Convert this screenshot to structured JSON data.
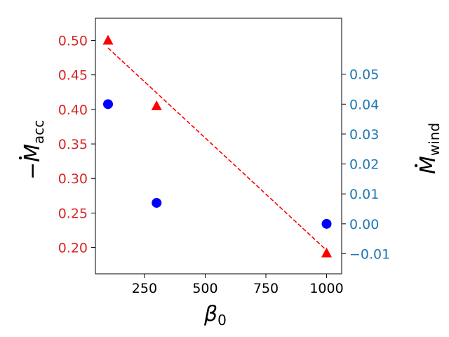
{
  "chart_data": {
    "type": "scatter",
    "x": [
      100,
      300,
      1000
    ],
    "xticks": [
      250,
      500,
      750,
      1000
    ],
    "xlim": [
      48,
      1062
    ],
    "xlabel": {
      "main": "β",
      "sub": "0"
    },
    "left_axis": {
      "label": {
        "sign": "−",
        "main": "M",
        "sub": "acc"
      },
      "ylim": [
        0.162,
        0.532
      ],
      "ticks": [
        "0.20",
        "0.25",
        "0.30",
        "0.35",
        "0.40",
        "0.45",
        "0.50"
      ],
      "tick_values": [
        0.2,
        0.25,
        0.3,
        0.35,
        0.4,
        0.45,
        0.5
      ],
      "color": "#d62728"
    },
    "right_axis": {
      "label": {
        "main": "M",
        "sub": "wind"
      },
      "ylim": [
        -0.0167,
        0.0687
      ],
      "ticks": [
        "−0.01",
        "0.00",
        "0.01",
        "0.02",
        "0.03",
        "0.04",
        "0.05"
      ],
      "tick_values": [
        -0.01,
        0.0,
        0.01,
        0.02,
        0.03,
        0.04,
        0.05
      ],
      "color": "#1f77b4"
    },
    "series": [
      {
        "axis": "left",
        "marker": "triangle",
        "color": "#ff0000",
        "values": [
          0.5,
          0.405,
          0.192
        ]
      },
      {
        "axis": "right",
        "marker": "circle",
        "color": "#0000ff",
        "values": [
          0.04,
          0.007,
          0.0
        ]
      },
      {
        "axis": "left",
        "style": "dashed-line",
        "color": "#ff0000",
        "line_x": [
          100,
          1000
        ],
        "values": [
          0.489,
          0.196
        ]
      }
    ],
    "grid": false
  }
}
